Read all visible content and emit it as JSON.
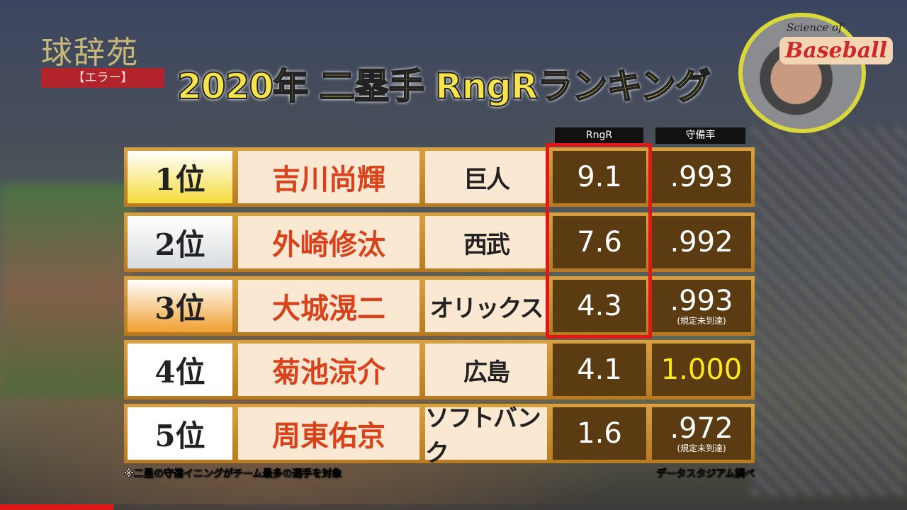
{
  "program": {
    "logo_title": "球辞苑",
    "logo_subtitle": "【エラー】"
  },
  "title": "2020年 二塁手 RngRランキング",
  "brand": {
    "script": "Science of",
    "name": "Baseball"
  },
  "headers": {
    "rngr": "RngR",
    "fielding": "守備率"
  },
  "rows": [
    {
      "rank": "1位",
      "name": "吉川尚輝",
      "team": "巨人",
      "rngr": "9.1",
      "fielding": ".993",
      "note": "",
      "rank_color": "#f4dc3a"
    },
    {
      "rank": "2位",
      "name": "外崎修汰",
      "team": "西武",
      "rngr": "7.6",
      "fielding": ".992",
      "note": "",
      "rank_color": "#d8dce0"
    },
    {
      "rank": "3位",
      "name": "大城滉二",
      "team": "オリックス",
      "rngr": "4.3",
      "fielding": ".993",
      "note": "(規定未到達)",
      "rank_color": "#f0a030"
    },
    {
      "rank": "4位",
      "name": "菊池涼介",
      "team": "広島",
      "rngr": "4.1",
      "fielding": "1.000",
      "note": "",
      "rank_color": "#ffffff"
    },
    {
      "rank": "5位",
      "name": "周東佑京",
      "team": "ソフトバンク",
      "rngr": "1.6",
      "fielding": ".972",
      "note": "(規定未到達)",
      "rank_color": "#ffffff"
    }
  ],
  "highlight_color": "#ffe81a",
  "footnote": "※二塁の守備イニングがチーム最多の選手を対象",
  "source": "データスタジアム調べ",
  "video_progress_percent": 12.5
}
